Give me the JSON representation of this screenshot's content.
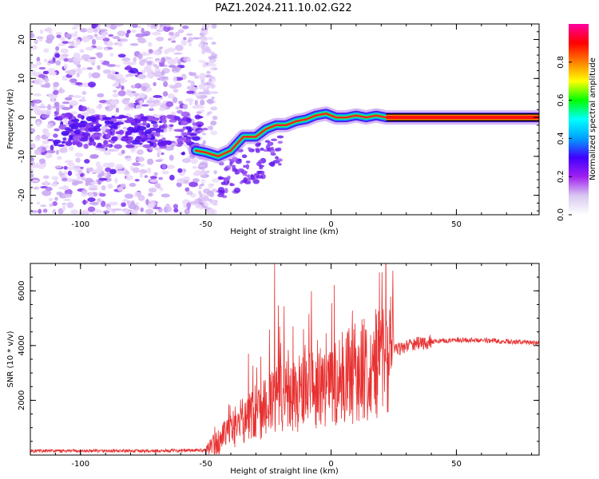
{
  "title": "PAZ1.2024.211.10.02.G22",
  "chart_data": [
    {
      "type": "heatmap",
      "xlabel": "Height of straight line (km)",
      "ylabel": "Frequency (Hz)",
      "xlim": [
        -120,
        83
      ],
      "ylim": [
        -25,
        24
      ],
      "xticks": [
        -100,
        -50,
        0,
        50
      ],
      "yticks": [
        -20,
        -10,
        0,
        10,
        20
      ],
      "ridge": {
        "x": [
          -54,
          -50,
          -45,
          -40,
          -35,
          -30,
          -26,
          -22,
          -18,
          -14,
          -10,
          -6,
          -2,
          2,
          6,
          10,
          14,
          18,
          22,
          30,
          50,
          83
        ],
        "y": [
          -8.5,
          -9,
          -10,
          -8.5,
          -5,
          -5,
          -3,
          -2,
          -2,
          -1,
          -0.5,
          0.5,
          1,
          0,
          0,
          0.5,
          0,
          0.5,
          0,
          0,
          0,
          0
        ]
      },
      "colorbar": {
        "label": "Normalized spectral amplitude",
        "range": [
          0,
          1
        ],
        "ticks": [
          0.0,
          0.2,
          0.4,
          0.6,
          0.8
        ],
        "tick_labels": [
          "0.0",
          "0.2",
          "0.4",
          "0.6",
          "0.8"
        ],
        "colors": [
          "#ffffff",
          "#d8c8f0",
          "#a020f0",
          "#4000ff",
          "#00a0ff",
          "#00ffff",
          "#00ff00",
          "#ffff00",
          "#ff8000",
          "#ff0000",
          "#ff00a0"
        ]
      }
    },
    {
      "type": "line",
      "xlabel": "Height of straight line (km)",
      "ylabel": "SNR (10 * v/v)",
      "xlim": [
        -120,
        83
      ],
      "ylim": [
        0,
        7000
      ],
      "xticks": [
        -100,
        -50,
        0,
        50
      ],
      "yticks": [
        2000,
        4000,
        6000
      ],
      "color": "#e83030",
      "envelope": {
        "x": [
          -120,
          -70,
          -50,
          -46,
          -40,
          -35,
          -30,
          -25,
          -22,
          -18,
          -10,
          -5,
          0,
          5,
          10,
          15,
          20,
          25,
          30,
          40,
          50,
          60,
          70,
          83
        ],
        "y": [
          150,
          150,
          180,
          400,
          900,
          1300,
          1600,
          1900,
          2200,
          2100,
          2300,
          2500,
          2550,
          2800,
          3000,
          3250,
          3500,
          3800,
          4000,
          4150,
          4200,
          4200,
          4150,
          4100
        ]
      },
      "spikes": [
        {
          "x": -22.5,
          "y": 7000
        },
        {
          "x": -20.5,
          "y": 4700
        },
        {
          "x": -11,
          "y": 4600
        },
        {
          "x": -2,
          "y": 4450
        },
        {
          "x": -33,
          "y": 3700
        },
        {
          "x": -28,
          "y": 3600
        }
      ]
    }
  ]
}
